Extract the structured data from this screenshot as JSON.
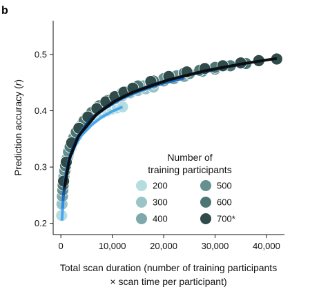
{
  "chart_data": {
    "type": "scatter",
    "panel_label": "b",
    "xlabel_line1": "Total scan duration (number of training participants",
    "xlabel_line2": "× scan time per participant)",
    "ylabel_prefix": "Prediction accuracy (",
    "ylabel_italic": "r",
    "ylabel_suffix": ")",
    "xlim": [
      -1500,
      43500
    ],
    "ylim": [
      0.18,
      0.56
    ],
    "x_ticks": [
      0,
      10000,
      20000,
      30000,
      40000
    ],
    "x_tick_labels": [
      "0",
      "10,000",
      "20,000",
      "30,000",
      "40,000"
    ],
    "y_ticks": [
      0.2,
      0.3,
      0.4,
      0.5
    ],
    "y_tick_labels": [
      "0.2",
      "0.3",
      "0.4",
      "0.5"
    ],
    "legend": {
      "title_line1": "Number of",
      "title_line2": "training participants",
      "placement": "center-right"
    },
    "series": [
      {
        "name": "200",
        "participants": 200,
        "marker_color": "#b5dde0",
        "fit_color": "#4aa6ee",
        "points": [
          [
            150,
            0.214
          ],
          [
            300,
            0.252
          ],
          [
            600,
            0.28
          ],
          [
            1000,
            0.305
          ],
          [
            1500,
            0.322
          ],
          [
            2000,
            0.335
          ],
          [
            2500,
            0.346
          ],
          [
            3000,
            0.355
          ],
          [
            3500,
            0.363
          ],
          [
            4000,
            0.37
          ],
          [
            5000,
            0.379
          ],
          [
            6000,
            0.387
          ],
          [
            7000,
            0.392
          ],
          [
            8000,
            0.396
          ],
          [
            9000,
            0.4
          ],
          [
            10000,
            0.403
          ],
          [
            11000,
            0.405
          ],
          [
            12000,
            0.407
          ]
        ],
        "fit": [
          [
            200,
            0.205
          ],
          [
            500,
            0.251
          ],
          [
            1000,
            0.286
          ],
          [
            2000,
            0.322
          ],
          [
            3000,
            0.342
          ],
          [
            4000,
            0.356
          ],
          [
            6000,
            0.375
          ],
          [
            8000,
            0.389
          ],
          [
            10000,
            0.399
          ],
          [
            12000,
            0.407
          ]
        ]
      },
      {
        "name": "300",
        "participants": 300,
        "marker_color": "#9bc4c8",
        "fit_color": "#2f8de0",
        "points": [
          [
            225,
            0.234
          ],
          [
            450,
            0.27
          ],
          [
            900,
            0.302
          ],
          [
            1500,
            0.327
          ],
          [
            2250,
            0.347
          ],
          [
            3000,
            0.361
          ],
          [
            3750,
            0.372
          ],
          [
            4500,
            0.38
          ],
          [
            5250,
            0.388
          ],
          [
            6000,
            0.395
          ],
          [
            7500,
            0.405
          ],
          [
            9000,
            0.414
          ],
          [
            10500,
            0.421
          ],
          [
            12000,
            0.427
          ],
          [
            13500,
            0.432
          ],
          [
            15000,
            0.436
          ],
          [
            16500,
            0.439
          ],
          [
            18000,
            0.442
          ]
        ],
        "fit": [
          [
            300,
            0.226
          ],
          [
            750,
            0.276
          ],
          [
            1500,
            0.313
          ],
          [
            3000,
            0.35
          ],
          [
            4500,
            0.371
          ],
          [
            6000,
            0.386
          ],
          [
            9000,
            0.407
          ],
          [
            12000,
            0.422
          ],
          [
            15000,
            0.434
          ],
          [
            18000,
            0.443
          ]
        ]
      },
      {
        "name": "400",
        "participants": 400,
        "marker_color": "#7ea8ac",
        "fit_color": "#1f6fc0",
        "points": [
          [
            300,
            0.248
          ],
          [
            600,
            0.283
          ],
          [
            1200,
            0.315
          ],
          [
            2000,
            0.34
          ],
          [
            3000,
            0.36
          ],
          [
            4000,
            0.375
          ],
          [
            5000,
            0.386
          ],
          [
            6000,
            0.395
          ],
          [
            7000,
            0.403
          ],
          [
            8000,
            0.41
          ],
          [
            10000,
            0.421
          ],
          [
            12000,
            0.43
          ],
          [
            14000,
            0.438
          ],
          [
            16000,
            0.444
          ],
          [
            18000,
            0.449
          ],
          [
            20000,
            0.453
          ],
          [
            22000,
            0.457
          ],
          [
            24000,
            0.461
          ]
        ],
        "fit": [
          [
            400,
            0.24
          ],
          [
            1000,
            0.29
          ],
          [
            2000,
            0.327
          ],
          [
            4000,
            0.364
          ],
          [
            6000,
            0.386
          ],
          [
            8000,
            0.401
          ],
          [
            12000,
            0.423
          ],
          [
            16000,
            0.438
          ],
          [
            20000,
            0.449
          ],
          [
            24000,
            0.458
          ]
        ]
      },
      {
        "name": "500",
        "participants": 500,
        "marker_color": "#64908f",
        "fit_color": "#17549a",
        "points": [
          [
            375,
            0.259
          ],
          [
            750,
            0.293
          ],
          [
            1500,
            0.327
          ],
          [
            2500,
            0.352
          ],
          [
            3750,
            0.372
          ],
          [
            5000,
            0.388
          ],
          [
            6250,
            0.399
          ],
          [
            7500,
            0.408
          ],
          [
            8750,
            0.416
          ],
          [
            10000,
            0.422
          ],
          [
            12500,
            0.434
          ],
          [
            15000,
            0.443
          ],
          [
            17500,
            0.45
          ],
          [
            20000,
            0.457
          ],
          [
            22500,
            0.462
          ],
          [
            25000,
            0.466
          ],
          [
            27500,
            0.47
          ],
          [
            30000,
            0.474
          ]
        ],
        "fit": [
          [
            500,
            0.25
          ],
          [
            1250,
            0.302
          ],
          [
            2500,
            0.34
          ],
          [
            5000,
            0.377
          ],
          [
            7500,
            0.399
          ],
          [
            10000,
            0.415
          ],
          [
            15000,
            0.437
          ],
          [
            20000,
            0.452
          ],
          [
            25000,
            0.464
          ],
          [
            30000,
            0.473
          ]
        ]
      },
      {
        "name": "600",
        "participants": 600,
        "marker_color": "#4c7674",
        "fit_color": "#0f3868",
        "points": [
          [
            450,
            0.268
          ],
          [
            900,
            0.302
          ],
          [
            1800,
            0.336
          ],
          [
            3000,
            0.362
          ],
          [
            4500,
            0.382
          ],
          [
            6000,
            0.397
          ],
          [
            7500,
            0.409
          ],
          [
            9000,
            0.418
          ],
          [
            10500,
            0.426
          ],
          [
            12000,
            0.432
          ],
          [
            15000,
            0.444
          ],
          [
            18000,
            0.453
          ],
          [
            21000,
            0.461
          ],
          [
            24000,
            0.467
          ],
          [
            27000,
            0.472
          ],
          [
            30000,
            0.477
          ],
          [
            33000,
            0.48
          ],
          [
            36000,
            0.484
          ]
        ],
        "fit": [
          [
            600,
            0.258
          ],
          [
            1500,
            0.31
          ],
          [
            3000,
            0.349
          ],
          [
            6000,
            0.387
          ],
          [
            9000,
            0.409
          ],
          [
            12000,
            0.425
          ],
          [
            18000,
            0.447
          ],
          [
            24000,
            0.462
          ],
          [
            30000,
            0.474
          ],
          [
            36000,
            0.484
          ]
        ]
      },
      {
        "name": "700*",
        "participants": 700,
        "marker_color": "#2f4b4a",
        "fit_color": "#0b0d10",
        "points": [
          [
            525,
            0.275
          ],
          [
            1050,
            0.309
          ],
          [
            2100,
            0.343
          ],
          [
            3500,
            0.369
          ],
          [
            5250,
            0.389
          ],
          [
            7000,
            0.404
          ],
          [
            8750,
            0.416
          ],
          [
            10500,
            0.425
          ],
          [
            12250,
            0.433
          ],
          [
            14000,
            0.44
          ],
          [
            17500,
            0.452
          ],
          [
            21000,
            0.461
          ],
          [
            24500,
            0.469
          ],
          [
            28000,
            0.475
          ],
          [
            31500,
            0.48
          ],
          [
            35000,
            0.485
          ],
          [
            38500,
            0.489
          ],
          [
            42000,
            0.492
          ]
        ],
        "fit": [
          [
            700,
            0.264
          ],
          [
            1750,
            0.317
          ],
          [
            3500,
            0.356
          ],
          [
            7000,
            0.394
          ],
          [
            10500,
            0.417
          ],
          [
            14000,
            0.433
          ],
          [
            21000,
            0.455
          ],
          [
            28000,
            0.471
          ],
          [
            35000,
            0.483
          ],
          [
            42000,
            0.493
          ]
        ]
      }
    ]
  }
}
